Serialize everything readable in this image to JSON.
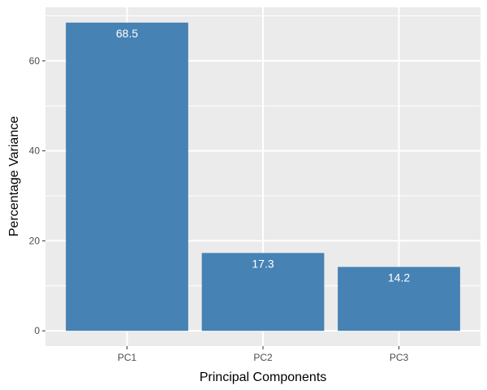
{
  "chart_data": {
    "type": "bar",
    "categories": [
      "PC1",
      "PC2",
      "PC3"
    ],
    "values": [
      68.5,
      17.3,
      14.2
    ],
    "data_labels": [
      "68.5",
      "17.3",
      "14.2"
    ],
    "title": "",
    "xlabel": "Principal Components",
    "ylabel": "Percentage Variance",
    "ylim": [
      -3.4,
      71.9
    ],
    "yticks": [
      0,
      20,
      40,
      60
    ],
    "ytick_labels": [
      "0",
      "20",
      "40",
      "60"
    ],
    "grid": true,
    "legend": "none",
    "colors": {
      "bar": "#4682b4",
      "panel_background": "#ebebeb",
      "grid": "#ffffff",
      "tick": "#333333"
    }
  }
}
